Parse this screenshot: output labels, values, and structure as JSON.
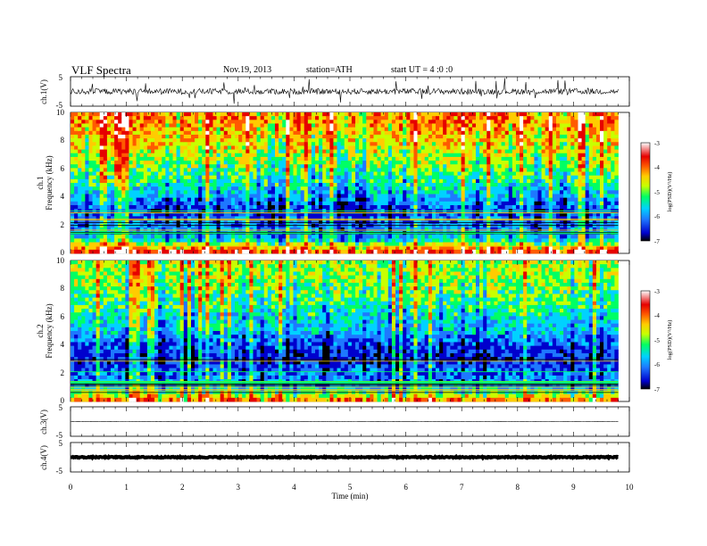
{
  "header": {
    "title": "VLF Spectra",
    "date": "Nov.19, 2013",
    "station": "station=ATH",
    "start_ut": "start UT =  4 :0 :0"
  },
  "colors": {
    "colormap": [
      "#000000",
      "#0000cd",
      "#1e78ff",
      "#00d2ff",
      "#00ff64",
      "#c8ff00",
      "#ffcc00",
      "#ff5a00",
      "#e60000",
      "#ffffff"
    ],
    "trace": "#000000"
  },
  "chart_data": [
    {
      "type": "line",
      "name": "ch1-waveform",
      "ylabel": "ch.1(V)",
      "ylim": [
        -5,
        5
      ],
      "yticks": [
        "5",
        "-5"
      ],
      "xlim": [
        0,
        10
      ],
      "baseline": 0,
      "noise_amplitude": 2
    },
    {
      "type": "heatmap",
      "name": "ch1-spectrogram",
      "ylabel_channel": "ch.1",
      "ylabel": "Frequency (kHz)",
      "ylim": [
        0,
        10
      ],
      "yticks": [
        "0",
        "2",
        "4",
        "6",
        "8",
        "10"
      ],
      "xlim": [
        0,
        9.8
      ],
      "colorbar": {
        "label": "log(PSD)(V²/Hz)",
        "range": [
          -7,
          -3
        ],
        "ticks": [
          "-3",
          "-4",
          "-5",
          "-6",
          "-7"
        ]
      },
      "levels_by_freq": [
        {
          "f": 0.5,
          "level": -4.2
        },
        {
          "f": 1.0,
          "level": -5.4
        },
        {
          "f": 2.0,
          "level": -5.8
        },
        {
          "f": 3.0,
          "level": -6.2
        },
        {
          "f": 4.0,
          "level": -5.6
        },
        {
          "f": 5.0,
          "level": -5.1
        },
        {
          "f": 6.0,
          "level": -4.8
        },
        {
          "f": 7.0,
          "level": -4.5
        },
        {
          "f": 8.0,
          "level": -4.2
        },
        {
          "f": 9.0,
          "level": -3.9
        },
        {
          "f": 10.0,
          "level": -3.8
        }
      ]
    },
    {
      "type": "heatmap",
      "name": "ch2-spectrogram",
      "ylabel_channel": "ch.2",
      "ylabel": "Frequency (kHz)",
      "ylim": [
        0,
        10
      ],
      "yticks": [
        "0",
        "2",
        "4",
        "6",
        "8",
        "10"
      ],
      "xlim": [
        0,
        9.8
      ],
      "colorbar": {
        "label": "log(PSD)(V²/Hz)",
        "range": [
          -7,
          -3
        ],
        "ticks": [
          "-3",
          "-4",
          "-5",
          "-6",
          "-7"
        ]
      },
      "levels_by_freq": [
        {
          "f": 0.5,
          "level": -4.6
        },
        {
          "f": 1.0,
          "level": -5.6
        },
        {
          "f": 2.0,
          "level": -5.9
        },
        {
          "f": 3.0,
          "level": -6.3
        },
        {
          "f": 4.0,
          "level": -6.1
        },
        {
          "f": 5.0,
          "level": -5.5
        },
        {
          "f": 6.0,
          "level": -5.3
        },
        {
          "f": 7.0,
          "level": -5.0
        },
        {
          "f": 8.0,
          "level": -4.8
        },
        {
          "f": 9.0,
          "level": -4.6
        },
        {
          "f": 10.0,
          "level": -4.5
        }
      ]
    },
    {
      "type": "line",
      "name": "ch3-waveform",
      "ylabel": "ch.3(V)",
      "ylim": [
        -5,
        5
      ],
      "yticks": [
        "5",
        "-5"
      ],
      "xlim": [
        0,
        10
      ],
      "baseline": 0,
      "noise_amplitude": 0.1
    },
    {
      "type": "line",
      "name": "ch4-waveform",
      "ylabel": "ch.4(V)",
      "ylim": [
        -5,
        5
      ],
      "yticks": [
        "5",
        "-5"
      ],
      "xlim": [
        0,
        10
      ],
      "baseline": 0,
      "noise_amplitude": 0.4
    }
  ],
  "x_axis": {
    "label": "Time (min)",
    "ticks": [
      "0",
      "1",
      "2",
      "3",
      "4",
      "5",
      "6",
      "7",
      "8",
      "9",
      "10"
    ]
  }
}
